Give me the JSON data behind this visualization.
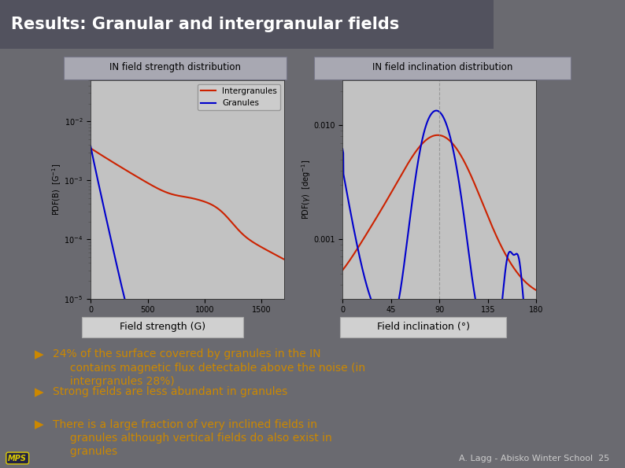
{
  "title": "Results: Granular and intergranular fields",
  "title_bg": "#4a4a5a",
  "title_color": "#ffffff",
  "slide_bg_top": "#6e6e72",
  "slide_bg": "#6a6a70",
  "panel_bg": "#c8c8c8",
  "plot_bg": "#c2c2c2",
  "subtitle_box_bg": "#9090a0",
  "xlab_box_bg": "#d0d0d0",
  "left_plot_title": "IN field strength distribution",
  "right_plot_title": "IN field inclination distribution",
  "left_xlabel": "Field strength (G)",
  "right_xlabel": "Field inclination (°)",
  "left_ylabel": "PDF(B)  [G⁻¹]",
  "right_ylabel": "PDF(γ)  [deg⁻¹]",
  "intergranules_color": "#cc2200",
  "granules_color": "#0000cc",
  "footer_text": "A. Lagg - Abisko Winter School  25",
  "footer_color": "#cccccc",
  "bullet_color": "#cc8800",
  "bullet_points": [
    "24% of the surface covered by granules in the IN\n     contains magnetic flux detectable above the noise (in\n     intergranules 28%)",
    "Strong fields are less abundant in granules",
    "There is a large fraction of very inclined fields in\n     granules although vertical fields do also exist in\n     granules"
  ]
}
